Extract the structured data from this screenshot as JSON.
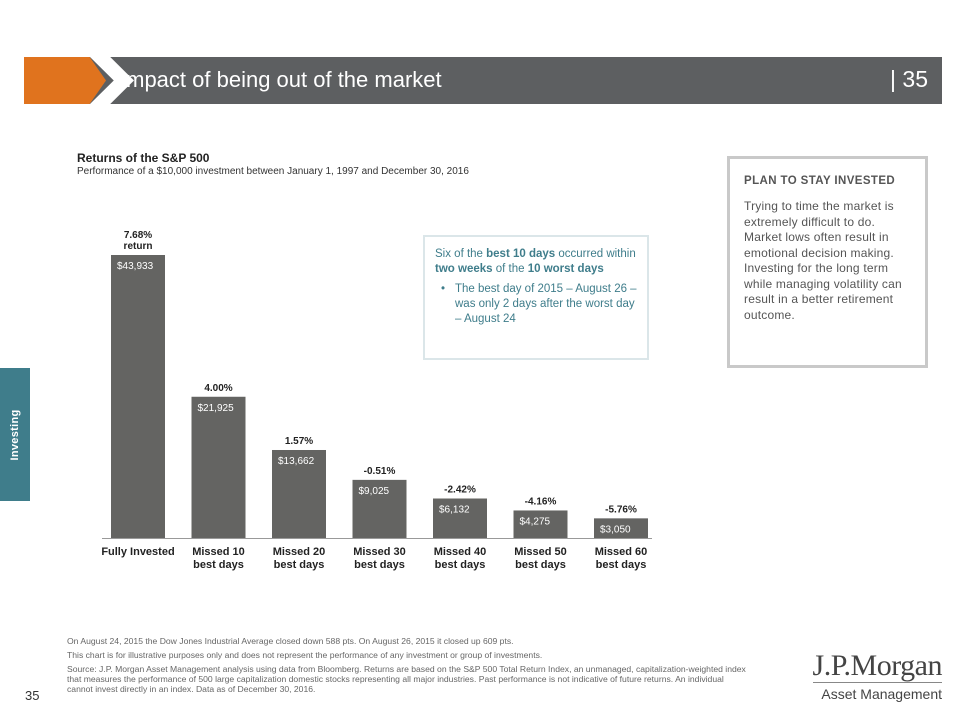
{
  "header": {
    "title": "Impact of being out of the market",
    "page": "| 35"
  },
  "side_tab": {
    "label": "Investing"
  },
  "chart_data": {
    "type": "bar",
    "title": "Returns of the S&P 500",
    "subtitle": "Performance of a $10,000 investment between January 1, 1997 and December 30, 2016",
    "categories": [
      [
        "Fully Invested"
      ],
      [
        "Missed 10",
        "best days"
      ],
      [
        "Missed 20",
        "best days"
      ],
      [
        "Missed 30",
        "best days"
      ],
      [
        "Missed 40",
        "best days"
      ],
      [
        "Missed 50",
        "best days"
      ],
      [
        "Missed 60",
        "best days"
      ]
    ],
    "values": [
      43933,
      21925,
      13662,
      9025,
      6132,
      4275,
      3050
    ],
    "value_labels": [
      "$43,933",
      "$21,925",
      "$13,662",
      "$9,025",
      "$6,132",
      "$4,275",
      "$3,050"
    ],
    "returns": [
      [
        "7.68%",
        "return"
      ],
      [
        "4.00%"
      ],
      [
        "1.57%"
      ],
      [
        "-0.51%"
      ],
      [
        "-2.42%"
      ],
      [
        "-4.16%"
      ],
      [
        "-5.76%"
      ]
    ],
    "ylim": [
      0,
      44000
    ],
    "bar_color": "#646462",
    "grid": false
  },
  "callout": {
    "head": [
      {
        "t": "Six of the ",
        "b": false
      },
      {
        "t": "best 10 days",
        "b": true
      },
      {
        "t": " occurred within ",
        "b": false
      },
      {
        "t": "two weeks",
        "b": true
      },
      {
        "t": " of the ",
        "b": false
      },
      {
        "t": "10 worst days",
        "b": true
      }
    ],
    "bullet_char": "•",
    "bullet": "The best day of 2015 – August 26 – was only 2 days after the worst day – August 24"
  },
  "plan": {
    "title": "PLAN TO STAY INVESTED",
    "body": "Trying to time the market is extremely difficult to do. Market lows often result in emotional decision making. Investing for the long term while managing volatility can result in a better retirement outcome."
  },
  "footnotes": [
    "On August 24, 2015 the Dow Jones Industrial Average closed down 588 pts. On August 26, 2015 it closed up 609 pts.",
    "This chart is for illustrative purposes only and does not represent the performance of any investment or group of investments.",
    "Source: J.P. Morgan Asset Management analysis using data from Bloomberg. Returns are based on the S&P 500 Total Return Index, an unmanaged, capitalization-weighted index that measures the performance of 500 large capitalization domestic stocks representing all major industries. Past performance is not indicative of future returns. An individual cannot invest directly in an index. Data as of December 30, 2016."
  ],
  "page_number": "35",
  "logo": {
    "line1": "J.P.Morgan",
    "line2": "Asset Management"
  }
}
